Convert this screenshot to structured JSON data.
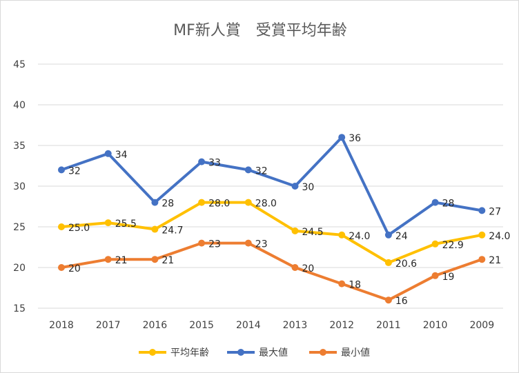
{
  "chart_data": {
    "type": "line",
    "title": "MF新人賞　受賞平均年齢",
    "categories": [
      "2018",
      "2017",
      "2016",
      "2015",
      "2014",
      "2013",
      "2012",
      "2011",
      "2010",
      "2009"
    ],
    "ylim": [
      15,
      45
    ],
    "yticks": [
      "15",
      "20",
      "25",
      "30",
      "35",
      "40",
      "45"
    ],
    "grid": true,
    "legend_position": "bottom",
    "series": [
      {
        "name": "平均年齢",
        "color": "#FFC000",
        "values": [
          25.0,
          25.5,
          24.7,
          28.0,
          28.0,
          24.5,
          24.0,
          20.6,
          22.9,
          24.0
        ],
        "labels": [
          "25.0",
          "25.5",
          "24.7",
          "28.0",
          "28.0",
          "24.5",
          "24.0",
          "20.6",
          "22.9",
          "24.0"
        ]
      },
      {
        "name": "最大値",
        "color": "#4472C4",
        "values": [
          32,
          34,
          28,
          33,
          32,
          30,
          36,
          24,
          28,
          27
        ],
        "labels": [
          "32",
          "34",
          "28",
          "33",
          "32",
          "30",
          "36",
          "24",
          "28",
          "27"
        ]
      },
      {
        "name": "最小値",
        "color": "#ED7D31",
        "values": [
          20,
          21,
          21,
          23,
          23,
          20,
          18,
          16,
          19,
          21
        ],
        "labels": [
          "20",
          "21",
          "21",
          "23",
          "23",
          "20",
          "18",
          "16",
          "19",
          "21"
        ]
      }
    ]
  }
}
